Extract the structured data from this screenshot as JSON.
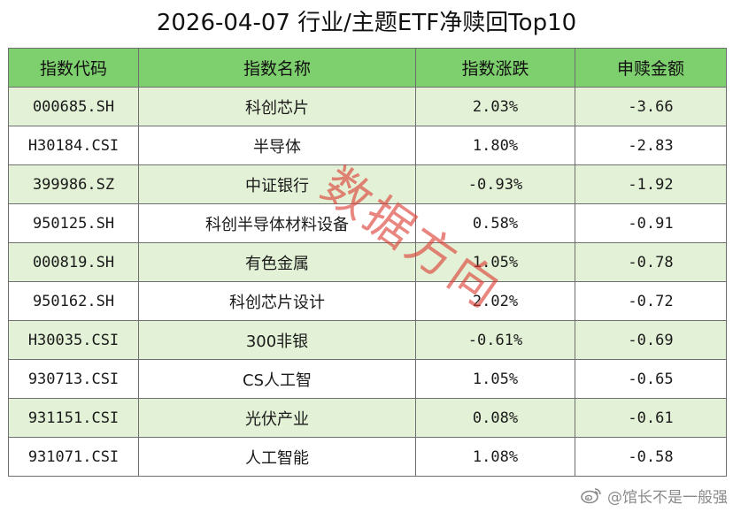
{
  "title": "2026-04-07 行业/主题ETF净赎回Top10",
  "headers": [
    "指数代码",
    "指数名称",
    "指数涨跌",
    "申赎金额"
  ],
  "rows": [
    [
      "000685.SH",
      "科创芯片",
      "2.03%",
      "-3.66"
    ],
    [
      "H30184.CSI",
      "半导体",
      "1.80%",
      "-2.83"
    ],
    [
      "399986.SZ",
      "中证银行",
      "-0.93%",
      "-1.92"
    ],
    [
      "950125.SH",
      "科创半导体材料设备",
      "0.58%",
      "-0.91"
    ],
    [
      "000819.SH",
      "有色金属",
      "1.05%",
      "-0.78"
    ],
    [
      "950162.SH",
      "科创芯片设计",
      "2.02%",
      "-0.72"
    ],
    [
      "H30035.CSI",
      "300非银",
      "-0.61%",
      "-0.69"
    ],
    [
      "930713.CSI",
      "CS人工智",
      "1.05%",
      "-0.65"
    ],
    [
      "931151.CSI",
      "光伏产业",
      "0.08%",
      "-0.61"
    ],
    [
      "931071.CSI",
      "人工智能",
      "1.08%",
      "-0.58"
    ]
  ],
  "watermark": "数据方向",
  "footer": {
    "handle": "@馆长不是一般强",
    "icon": "weibo-icon"
  },
  "colors": {
    "header_bg": "#7ecf6d",
    "stripe_bg": "#e3f1d6",
    "watermark": "#dc3c32"
  }
}
